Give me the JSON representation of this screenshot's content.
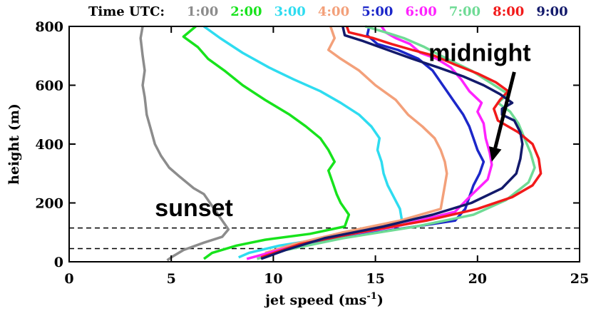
{
  "chart_data": {
    "type": "line",
    "title": "",
    "xlabel": "jet speed (ms",
    "xlabel_unit_exponent": "-1",
    "xlabel_close": ")",
    "ylabel": "height (m)",
    "xlim": [
      0,
      25
    ],
    "ylim": [
      0,
      800
    ],
    "x_ticks": [
      0,
      5,
      10,
      15,
      20,
      25
    ],
    "y_ticks": [
      0,
      200,
      400,
      600,
      800
    ],
    "x_tick_labels": [
      "0",
      "5",
      "10",
      "15",
      "20",
      "25"
    ],
    "y_tick_labels": [
      "0",
      "200",
      "400",
      "600",
      "800"
    ],
    "grid": false,
    "legend_title": "Time UTC:",
    "legend_placement": "top",
    "dashed_lines": [
      115,
      45
    ],
    "annotations": {
      "sunset": "sunset",
      "midnight": "midnight",
      "arrow_from": [
        21.8,
        645
      ],
      "arrow_to": [
        20.7,
        340
      ]
    },
    "series": [
      {
        "name": "1:00",
        "color": "#8c8c8c",
        "points": [
          [
            3.6,
            800
          ],
          [
            3.5,
            760
          ],
          [
            3.6,
            700
          ],
          [
            3.7,
            650
          ],
          [
            3.6,
            600
          ],
          [
            3.7,
            560
          ],
          [
            3.8,
            500
          ],
          [
            4.0,
            450
          ],
          [
            4.2,
            400
          ],
          [
            4.5,
            360
          ],
          [
            4.9,
            320
          ],
          [
            5.4,
            290
          ],
          [
            6.1,
            250
          ],
          [
            6.6,
            230
          ],
          [
            7.0,
            190
          ],
          [
            7.4,
            150
          ],
          [
            7.8,
            110
          ],
          [
            7.5,
            85
          ],
          [
            6.6,
            65
          ],
          [
            5.6,
            40
          ],
          [
            5.0,
            15
          ],
          [
            4.8,
            5
          ]
        ]
      },
      {
        "name": "2:00",
        "color": "#17e31c",
        "points": [
          [
            6.2,
            800
          ],
          [
            5.6,
            765
          ],
          [
            6.3,
            730
          ],
          [
            6.8,
            690
          ],
          [
            7.6,
            650
          ],
          [
            8.5,
            600
          ],
          [
            9.6,
            550
          ],
          [
            10.8,
            500
          ],
          [
            11.6,
            460
          ],
          [
            12.3,
            420
          ],
          [
            12.7,
            380
          ],
          [
            13.0,
            340
          ],
          [
            12.7,
            310
          ],
          [
            12.9,
            270
          ],
          [
            13.1,
            230
          ],
          [
            13.3,
            200
          ],
          [
            13.7,
            160
          ],
          [
            13.5,
            120
          ],
          [
            11.8,
            95
          ],
          [
            9.6,
            75
          ],
          [
            8.2,
            55
          ],
          [
            7.0,
            30
          ],
          [
            6.6,
            10
          ]
        ]
      },
      {
        "name": "3:00",
        "color": "#2edcf0",
        "points": [
          [
            6.6,
            800
          ],
          [
            7.4,
            760
          ],
          [
            8.5,
            710
          ],
          [
            9.8,
            660
          ],
          [
            11.0,
            620
          ],
          [
            12.3,
            580
          ],
          [
            13.3,
            540
          ],
          [
            14.2,
            500
          ],
          [
            14.8,
            460
          ],
          [
            15.2,
            420
          ],
          [
            15.1,
            380
          ],
          [
            15.3,
            340
          ],
          [
            15.4,
            300
          ],
          [
            15.6,
            260
          ],
          [
            15.9,
            220
          ],
          [
            16.2,
            180
          ],
          [
            16.3,
            140
          ],
          [
            15.0,
            105
          ],
          [
            12.6,
            80
          ],
          [
            10.3,
            55
          ],
          [
            8.8,
            30
          ],
          [
            8.3,
            15
          ]
        ]
      },
      {
        "name": "4:00",
        "color": "#f3a07a",
        "points": [
          [
            12.8,
            800
          ],
          [
            13.0,
            760
          ],
          [
            12.7,
            720
          ],
          [
            13.3,
            690
          ],
          [
            14.2,
            650
          ],
          [
            15.0,
            600
          ],
          [
            16.0,
            550
          ],
          [
            16.6,
            500
          ],
          [
            17.3,
            460
          ],
          [
            17.9,
            420
          ],
          [
            18.2,
            380
          ],
          [
            18.4,
            340
          ],
          [
            18.5,
            300
          ],
          [
            18.4,
            260
          ],
          [
            18.3,
            220
          ],
          [
            18.2,
            180
          ],
          [
            16.2,
            140
          ],
          [
            13.4,
            100
          ],
          [
            11.0,
            60
          ],
          [
            9.6,
            30
          ]
        ]
      },
      {
        "name": "5:00",
        "color": "#1c27c9",
        "points": [
          [
            14.7,
            800
          ],
          [
            14.6,
            770
          ],
          [
            15.1,
            740
          ],
          [
            16.1,
            720
          ],
          [
            17.1,
            690
          ],
          [
            17.8,
            650
          ],
          [
            18.3,
            600
          ],
          [
            18.8,
            550
          ],
          [
            19.3,
            500
          ],
          [
            19.6,
            460
          ],
          [
            19.8,
            420
          ],
          [
            20.0,
            380
          ],
          [
            20.3,
            340
          ],
          [
            20.1,
            300
          ],
          [
            19.8,
            260
          ],
          [
            19.6,
            220
          ],
          [
            19.4,
            180
          ],
          [
            18.9,
            140
          ],
          [
            16.0,
            110
          ],
          [
            13.3,
            80
          ],
          [
            11.0,
            50
          ],
          [
            9.6,
            20
          ]
        ]
      },
      {
        "name": "6:00",
        "color": "#ff22ff",
        "points": [
          [
            15.3,
            800
          ],
          [
            15.5,
            780
          ],
          [
            16.0,
            760
          ],
          [
            16.7,
            740
          ],
          [
            17.2,
            710
          ],
          [
            18.0,
            690
          ],
          [
            18.7,
            660
          ],
          [
            19.2,
            620
          ],
          [
            19.6,
            580
          ],
          [
            20.2,
            540
          ],
          [
            20.0,
            510
          ],
          [
            20.3,
            470
          ],
          [
            20.4,
            420
          ],
          [
            20.6,
            370
          ],
          [
            20.7,
            330
          ],
          [
            20.5,
            280
          ],
          [
            19.6,
            220
          ],
          [
            18.9,
            170
          ],
          [
            16.0,
            120
          ],
          [
            12.6,
            80
          ],
          [
            10.3,
            40
          ],
          [
            8.7,
            10
          ]
        ]
      },
      {
        "name": "7:00",
        "color": "#6fdb95",
        "points": [
          [
            14.5,
            800
          ],
          [
            15.5,
            780
          ],
          [
            16.4,
            760
          ],
          [
            17.4,
            730
          ],
          [
            18.5,
            690
          ],
          [
            19.7,
            650
          ],
          [
            20.6,
            610
          ],
          [
            21.5,
            570
          ],
          [
            21.0,
            540
          ],
          [
            21.6,
            510
          ],
          [
            22.0,
            470
          ],
          [
            22.3,
            420
          ],
          [
            22.6,
            370
          ],
          [
            22.8,
            320
          ],
          [
            22.5,
            270
          ],
          [
            21.4,
            210
          ],
          [
            19.8,
            160
          ],
          [
            17.0,
            120
          ],
          [
            13.4,
            80
          ],
          [
            10.6,
            40
          ],
          [
            9.2,
            10
          ]
        ]
      },
      {
        "name": "8:00",
        "color": "#f21a1a",
        "points": [
          [
            13.6,
            800
          ],
          [
            13.7,
            780
          ],
          [
            14.9,
            760
          ],
          [
            15.8,
            740
          ],
          [
            16.8,
            720
          ],
          [
            17.9,
            700
          ],
          [
            18.9,
            670
          ],
          [
            20.0,
            640
          ],
          [
            20.9,
            610
          ],
          [
            21.5,
            580
          ],
          [
            21.1,
            550
          ],
          [
            20.8,
            520
          ],
          [
            21.0,
            480
          ],
          [
            22.0,
            440
          ],
          [
            22.7,
            400
          ],
          [
            23.0,
            350
          ],
          [
            23.1,
            300
          ],
          [
            22.7,
            260
          ],
          [
            21.7,
            220
          ],
          [
            20.0,
            180
          ],
          [
            17.5,
            140
          ],
          [
            14.2,
            100
          ],
          [
            11.3,
            60
          ],
          [
            9.4,
            15
          ]
        ]
      },
      {
        "name": "9:00",
        "color": "#131a6b",
        "points": [
          [
            13.4,
            800
          ],
          [
            13.5,
            770
          ],
          [
            14.4,
            750
          ],
          [
            15.6,
            720
          ],
          [
            16.8,
            690
          ],
          [
            18.1,
            660
          ],
          [
            19.3,
            630
          ],
          [
            20.3,
            600
          ],
          [
            21.1,
            570
          ],
          [
            21.7,
            540
          ],
          [
            21.2,
            520
          ],
          [
            21.2,
            500
          ],
          [
            21.8,
            480
          ],
          [
            22.1,
            440
          ],
          [
            22.2,
            400
          ],
          [
            22.1,
            350
          ],
          [
            21.9,
            300
          ],
          [
            21.2,
            250
          ],
          [
            19.7,
            200
          ],
          [
            17.8,
            160
          ],
          [
            15.4,
            120
          ],
          [
            12.5,
            80
          ],
          [
            10.6,
            40
          ],
          [
            9.4,
            10
          ]
        ]
      }
    ]
  }
}
